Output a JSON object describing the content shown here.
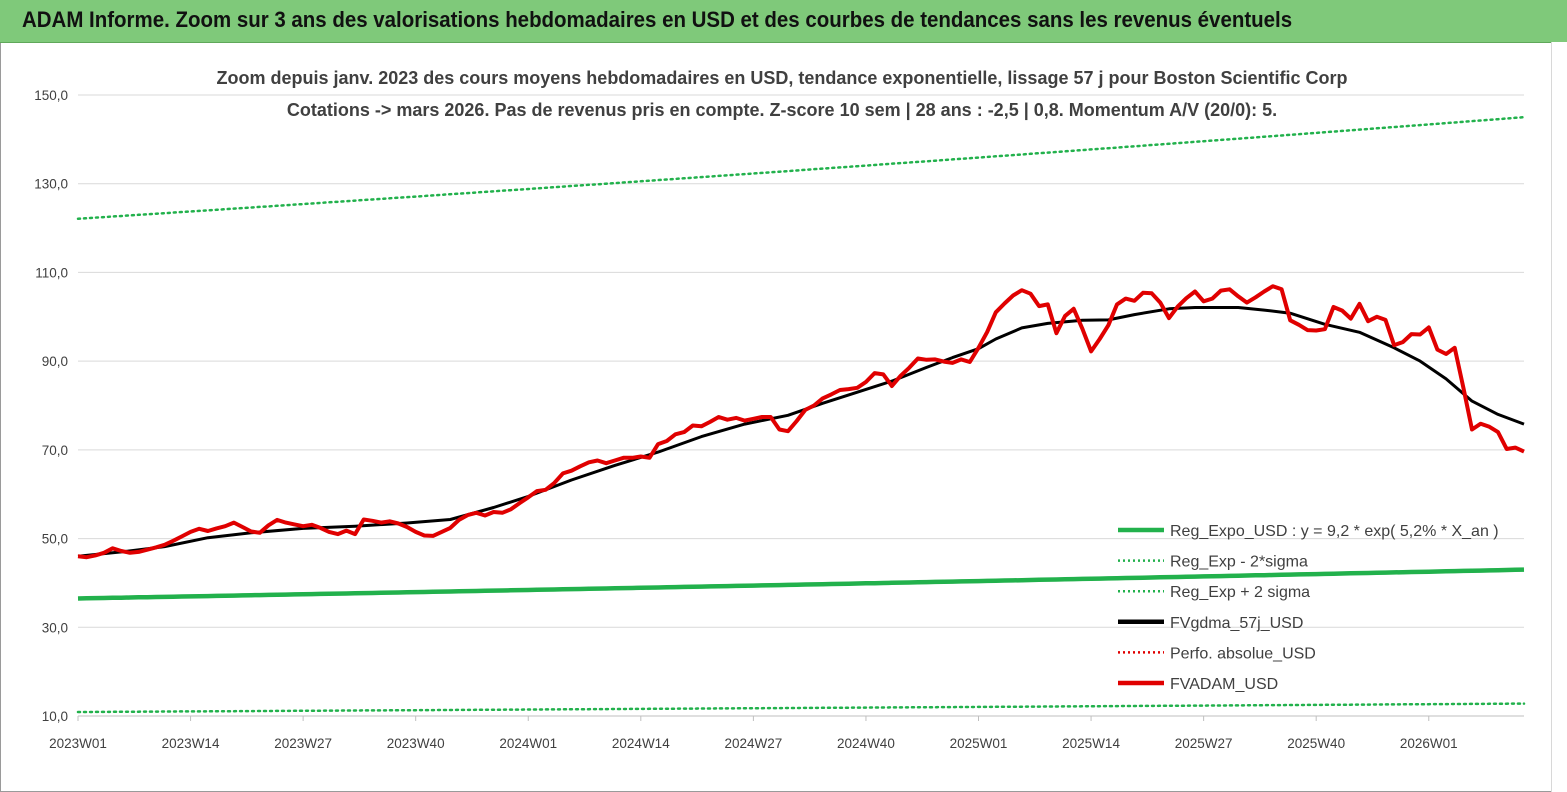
{
  "banner": {
    "title": "ADAM Informe. Zoom sur 3 ans des valorisations hebdomadaires en USD et des courbes de tendances sans les revenus éventuels"
  },
  "colors": {
    "banner_bg": "#7fc97a",
    "reg_expo": "#22b14c",
    "reg_band": "#22b14c",
    "fvgdma": "#000000",
    "perfo": "#e00000",
    "fvadam": "#e00000",
    "grid": "#d9d9d9"
  },
  "chart_data": {
    "type": "line",
    "title_line1": "Zoom depuis janv. 2023 des cours moyens hebdomadaires en USD, tendance exponentielle, lissage 57 j pour Boston Scientific Corp",
    "title_line2": "Cotations -> mars 2026. Pas de revenus pris en compte. Z-score 10 sem  | 28 ans : -2,5  | 0,8. Momentum A/V (20/0): 5.",
    "ylim": [
      10,
      150
    ],
    "yticks": [
      "10,0",
      "30,0",
      "50,0",
      "70,0",
      "90,0",
      "110,0",
      "130,0",
      "150,0"
    ],
    "ytick_values": [
      10,
      30,
      50,
      70,
      90,
      110,
      130,
      150
    ],
    "x_weeks_total": 168,
    "xticks": [
      "2023W01",
      "2023W14",
      "2023W27",
      "2023W40",
      "2024W01",
      "2024W14",
      "2024W27",
      "2024W40",
      "2025W01",
      "2025W14",
      "2025W27",
      "2025W40",
      "2026W01"
    ],
    "xtick_index": [
      0,
      13,
      26,
      39,
      52,
      65,
      78,
      91,
      104,
      117,
      130,
      143,
      156
    ],
    "legend": [
      {
        "key": "reg_expo",
        "label": "Reg_Expo_USD : y = 9,2 * exp( 5,2% *  X_an )",
        "style": "solid-thick",
        "color": "#22b14c"
      },
      {
        "key": "reg_minus",
        "label": "Reg_Exp - 2*sigma",
        "style": "dotted",
        "color": "#22b14c"
      },
      {
        "key": "reg_plus",
        "label": "Reg_Exp + 2 sigma",
        "style": "dotted",
        "color": "#22b14c"
      },
      {
        "key": "fvgdma",
        "label": "FVgdma_57j_USD",
        "style": "solid-thick",
        "color": "#000000"
      },
      {
        "key": "perfo",
        "label": "Perfo. absolue_USD",
        "style": "dotted",
        "color": "#e00000"
      },
      {
        "key": "fvadam",
        "label": "FVADAM_USD",
        "style": "solid-thick",
        "color": "#e00000"
      }
    ],
    "series": {
      "reg_expo": {
        "start": 36.5,
        "end": 43.0
      },
      "reg_minus": {
        "start": 10.9,
        "end": 12.8
      },
      "reg_plus": {
        "start": 122.1,
        "end": 145.0
      },
      "fvgdma": {
        "name": "FVgdma_57j_USD",
        "points": [
          [
            0,
            46.0
          ],
          [
            5,
            47.0
          ],
          [
            10,
            48.2
          ],
          [
            15,
            50.2
          ],
          [
            20,
            51.3
          ],
          [
            26,
            52.3
          ],
          [
            32,
            52.8
          ],
          [
            38,
            53.5
          ],
          [
            43,
            54.3
          ],
          [
            48,
            57.0
          ],
          [
            52,
            59.5
          ],
          [
            57,
            63.2
          ],
          [
            62,
            66.5
          ],
          [
            67,
            69.5
          ],
          [
            72,
            73.0
          ],
          [
            77,
            75.8
          ],
          [
            82,
            77.8
          ],
          [
            86,
            80.5
          ],
          [
            90,
            83.0
          ],
          [
            94,
            85.5
          ],
          [
            98,
            88.6
          ],
          [
            101,
            90.8
          ],
          [
            104,
            92.8
          ],
          [
            106,
            95.0
          ],
          [
            109,
            97.5
          ],
          [
            112,
            98.5
          ],
          [
            116,
            99.2
          ],
          [
            119,
            99.3
          ],
          [
            122,
            100.5
          ],
          [
            126,
            101.8
          ],
          [
            129,
            102.1
          ],
          [
            134,
            102.1
          ],
          [
            137,
            101.5
          ],
          [
            140,
            100.8
          ],
          [
            144,
            98.3
          ],
          [
            148,
            96.5
          ],
          [
            152,
            93.0
          ],
          [
            155,
            90.0
          ],
          [
            158,
            86.0
          ],
          [
            161,
            81.0
          ],
          [
            164,
            78.0
          ],
          [
            167,
            75.8
          ]
        ]
      },
      "fvadam": {
        "name": "FVADAM_USD",
        "points": [
          [
            0,
            46.0
          ],
          [
            1,
            45.8
          ],
          [
            2,
            46.2
          ],
          [
            3,
            46.8
          ],
          [
            4,
            47.8
          ],
          [
            5,
            47.2
          ],
          [
            6,
            46.8
          ],
          [
            7,
            47.0
          ],
          [
            8,
            47.5
          ],
          [
            9,
            48.0
          ],
          [
            10,
            48.6
          ],
          [
            11,
            49.5
          ],
          [
            12,
            50.5
          ],
          [
            13,
            51.5
          ],
          [
            14,
            52.2
          ],
          [
            15,
            51.7
          ],
          [
            16,
            52.3
          ],
          [
            17,
            52.8
          ],
          [
            18,
            53.6
          ],
          [
            19,
            52.6
          ],
          [
            20,
            51.6
          ],
          [
            21,
            51.3
          ],
          [
            22,
            53.0
          ],
          [
            23,
            54.2
          ],
          [
            24,
            53.6
          ],
          [
            25,
            53.2
          ],
          [
            26,
            52.8
          ],
          [
            27,
            53.1
          ],
          [
            28,
            52.4
          ],
          [
            29,
            51.5
          ],
          [
            30,
            51.0
          ],
          [
            31,
            51.8
          ],
          [
            32,
            51.0
          ],
          [
            33,
            54.3
          ],
          [
            34,
            54.0
          ],
          [
            35,
            53.6
          ],
          [
            36,
            53.9
          ],
          [
            37,
            53.4
          ],
          [
            38,
            52.6
          ],
          [
            39,
            51.5
          ],
          [
            40,
            50.7
          ],
          [
            41,
            50.6
          ],
          [
            42,
            51.5
          ],
          [
            43,
            52.4
          ],
          [
            44,
            54.2
          ],
          [
            45,
            55.3
          ],
          [
            46,
            55.8
          ],
          [
            47,
            55.2
          ],
          [
            48,
            56.0
          ],
          [
            49,
            55.8
          ],
          [
            50,
            56.6
          ],
          [
            51,
            58.0
          ],
          [
            52,
            59.3
          ],
          [
            53,
            60.7
          ],
          [
            54,
            61.0
          ],
          [
            55,
            62.5
          ],
          [
            56,
            64.7
          ],
          [
            57,
            65.3
          ],
          [
            58,
            66.3
          ],
          [
            59,
            67.2
          ],
          [
            60,
            67.6
          ],
          [
            61,
            67.0
          ],
          [
            62,
            67.6
          ],
          [
            63,
            68.2
          ],
          [
            64,
            68.2
          ],
          [
            65,
            68.5
          ],
          [
            66,
            68.2
          ],
          [
            67,
            71.3
          ],
          [
            68,
            72.0
          ],
          [
            69,
            73.5
          ],
          [
            70,
            74.0
          ],
          [
            71,
            75.5
          ],
          [
            72,
            75.3
          ],
          [
            73,
            76.3
          ],
          [
            74,
            77.4
          ],
          [
            75,
            76.8
          ],
          [
            76,
            77.2
          ],
          [
            77,
            76.6
          ],
          [
            78,
            77.0
          ],
          [
            79,
            77.4
          ],
          [
            80,
            77.4
          ],
          [
            81,
            74.6
          ],
          [
            82,
            74.2
          ],
          [
            83,
            76.5
          ],
          [
            84,
            79.0
          ],
          [
            85,
            80.0
          ],
          [
            86,
            81.6
          ],
          [
            87,
            82.5
          ],
          [
            88,
            83.5
          ],
          [
            89,
            83.7
          ],
          [
            90,
            84.0
          ],
          [
            91,
            85.3
          ],
          [
            92,
            87.3
          ],
          [
            93,
            87.0
          ],
          [
            94,
            84.4
          ],
          [
            95,
            86.7
          ],
          [
            96,
            88.5
          ],
          [
            97,
            90.6
          ],
          [
            98,
            90.3
          ],
          [
            99,
            90.4
          ],
          [
            100,
            89.9
          ],
          [
            101,
            89.6
          ],
          [
            102,
            90.4
          ],
          [
            103,
            89.8
          ],
          [
            104,
            93.0
          ],
          [
            105,
            96.6
          ],
          [
            106,
            101.0
          ],
          [
            107,
            103.0
          ],
          [
            108,
            104.8
          ],
          [
            109,
            106.0
          ],
          [
            110,
            105.2
          ],
          [
            111,
            102.4
          ],
          [
            112,
            102.8
          ],
          [
            113,
            96.3
          ],
          [
            114,
            100.2
          ],
          [
            115,
            101.8
          ],
          [
            116,
            97.3
          ],
          [
            117,
            92.2
          ],
          [
            118,
            95.0
          ],
          [
            119,
            98.1
          ],
          [
            120,
            102.8
          ],
          [
            121,
            104.1
          ],
          [
            122,
            103.6
          ],
          [
            123,
            105.4
          ],
          [
            124,
            105.3
          ],
          [
            125,
            103.2
          ],
          [
            126,
            99.7
          ],
          [
            127,
            102.3
          ],
          [
            128,
            104.2
          ],
          [
            129,
            105.7
          ],
          [
            130,
            103.5
          ],
          [
            131,
            104.1
          ],
          [
            132,
            105.9
          ],
          [
            133,
            106.2
          ],
          [
            134,
            104.6
          ],
          [
            135,
            103.2
          ],
          [
            136,
            104.4
          ],
          [
            137,
            105.7
          ],
          [
            138,
            106.9
          ],
          [
            139,
            106.2
          ],
          [
            140,
            99.2
          ],
          [
            141,
            98.2
          ],
          [
            142,
            97.0
          ],
          [
            143,
            96.9
          ],
          [
            144,
            97.2
          ],
          [
            145,
            102.2
          ],
          [
            146,
            101.4
          ],
          [
            147,
            99.6
          ],
          [
            148,
            102.9
          ],
          [
            149,
            99.0
          ],
          [
            150,
            100.0
          ],
          [
            151,
            99.3
          ],
          [
            152,
            93.6
          ],
          [
            153,
            94.3
          ],
          [
            154,
            96.1
          ],
          [
            155,
            96.0
          ],
          [
            156,
            97.6
          ],
          [
            157,
            92.6
          ],
          [
            158,
            91.6
          ],
          [
            159,
            93.0
          ],
          [
            160,
            84.0
          ],
          [
            161,
            74.6
          ],
          [
            162,
            75.9
          ],
          [
            163,
            75.2
          ],
          [
            164,
            74.0
          ],
          [
            165,
            70.2
          ],
          [
            166,
            70.5
          ],
          [
            167,
            69.6
          ]
        ]
      }
    }
  }
}
